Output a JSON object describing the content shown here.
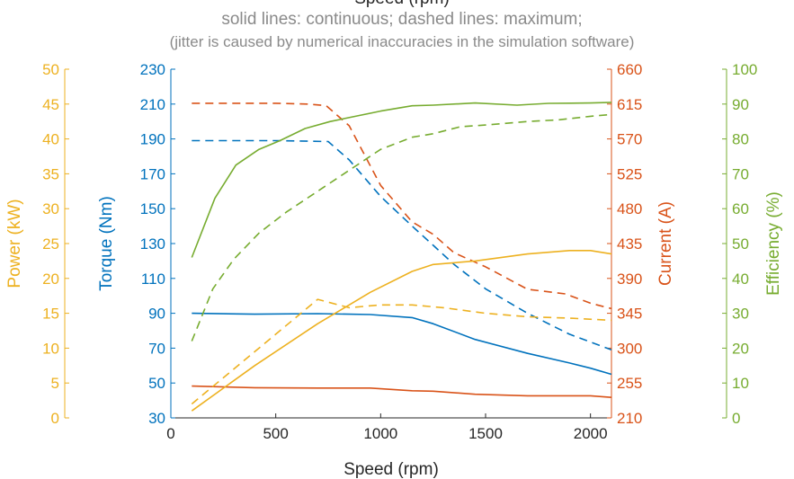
{
  "chart_data": {
    "type": "line",
    "title": "Speed (rpm)",
    "subtitle_1": "solid lines: continuous; dashed lines: maximum;",
    "subtitle_2": "(jitter is caused by numerical inaccuracies in the simulation software)",
    "xlabel": "Speed (rpm)",
    "xlim": [
      0,
      2100
    ],
    "xticks": [
      0,
      500,
      1000,
      1500,
      2000
    ],
    "grid": false,
    "axes": {
      "power": {
        "label": "Power (kW)",
        "color": "#EDB120",
        "lim": [
          0,
          50
        ],
        "ticks": [
          0,
          5,
          10,
          15,
          20,
          25,
          30,
          35,
          40,
          45,
          50
        ]
      },
      "torque": {
        "label": "Torque (Nm)",
        "color": "#0072BD",
        "lim": [
          30,
          230
        ],
        "ticks": [
          30,
          50,
          70,
          90,
          110,
          130,
          150,
          170,
          190,
          210,
          230
        ]
      },
      "current": {
        "label": "Current (A)",
        "color": "#D95319",
        "lim": [
          210,
          660
        ],
        "ticks": [
          210,
          255,
          300,
          345,
          390,
          435,
          480,
          525,
          570,
          615,
          660
        ]
      },
      "efficiency": {
        "label": "Efficiency (%)",
        "color": "#77AC30",
        "lim": [
          0,
          100
        ],
        "ticks": [
          0,
          10,
          20,
          30,
          40,
          50,
          60,
          70,
          80,
          90,
          100
        ]
      }
    },
    "series": [
      {
        "axis": "torque",
        "style": "dashed",
        "x": [
          100,
          300,
          500,
          750,
          850,
          1000,
          1150,
          1250,
          1350,
          1500,
          1700,
          1900,
          2100
        ],
        "y": [
          189,
          189,
          189,
          188.5,
          178,
          157,
          140,
          129,
          118,
          104,
          90,
          78,
          69
        ]
      },
      {
        "axis": "torque",
        "style": "solid",
        "x": [
          100,
          400,
          700,
          950,
          1150,
          1250,
          1450,
          1700,
          1900,
          2000,
          2100
        ],
        "y": [
          90,
          89.5,
          89.8,
          89.3,
          87.5,
          84,
          75,
          67,
          61.5,
          58.5,
          55
        ]
      },
      {
        "axis": "current",
        "style": "dashed",
        "x": [
          100,
          300,
          500,
          650,
          740,
          850,
          1000,
          1150,
          1250,
          1350,
          1500,
          1700,
          1880,
          2000,
          2100
        ],
        "y": [
          616,
          616,
          616,
          615,
          613,
          587,
          510,
          463,
          447,
          423,
          405,
          376,
          370,
          358,
          351
        ]
      },
      {
        "axis": "current",
        "style": "solid",
        "x": [
          100,
          400,
          700,
          950,
          1150,
          1250,
          1450,
          1700,
          2000,
          2100
        ],
        "y": [
          251,
          249,
          248.5,
          248.5,
          245,
          244.5,
          240.5,
          238.5,
          238.5,
          236.5
        ]
      },
      {
        "axis": "power",
        "style": "dashed",
        "x": [
          100,
          400,
          700,
          850,
          1000,
          1150,
          1300,
          1500,
          1700,
          1900,
          2100
        ],
        "y": [
          2,
          9.5,
          17,
          15.8,
          16.2,
          16.2,
          15.8,
          15,
          14.5,
          14.3,
          14
        ]
      },
      {
        "axis": "power",
        "style": "solid",
        "x": [
          100,
          400,
          700,
          950,
          1150,
          1250,
          1450,
          1700,
          1900,
          2000,
          2100
        ],
        "y": [
          1,
          7.5,
          13.5,
          18,
          21,
          22,
          22.5,
          23.5,
          24,
          24,
          23.5
        ]
      },
      {
        "axis": "efficiency",
        "style": "dashed",
        "x": [
          100,
          200,
          300,
          420,
          550,
          700,
          850,
          1000,
          1150,
          1250,
          1380,
          1500,
          1700,
          1850,
          2000,
          2100
        ],
        "y": [
          22,
          37,
          45.5,
          53,
          59,
          65,
          71,
          77,
          80.5,
          81.5,
          83.5,
          84,
          85,
          85.5,
          86.5,
          87
        ]
      },
      {
        "axis": "efficiency",
        "style": "solid",
        "x": [
          100,
          210,
          310,
          420,
          520,
          640,
          760,
          880,
          1000,
          1150,
          1250,
          1450,
          1650,
          1800,
          2000,
          2100
        ],
        "y": [
          46,
          63,
          72.5,
          77,
          79.5,
          83,
          85,
          86.5,
          88,
          89.5,
          89.7,
          90.3,
          89.7,
          90.2,
          90.3,
          90.5
        ]
      }
    ]
  }
}
